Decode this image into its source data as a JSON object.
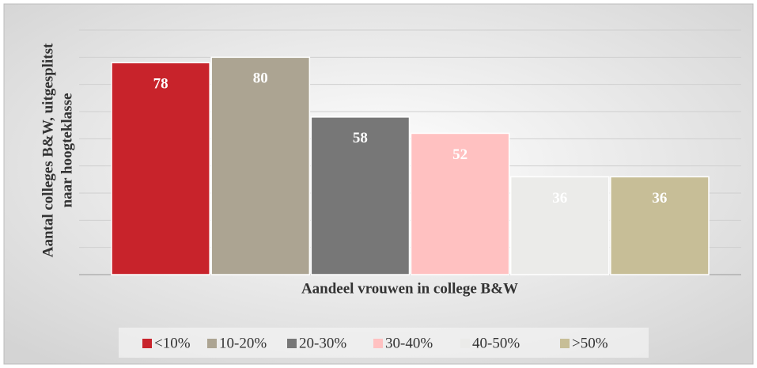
{
  "chart_data": {
    "type": "bar",
    "ylabel": [
      "Aantal colleges B&W, uitgesplitst",
      "naar hoogteklasse"
    ],
    "xlabel": "Aandeel vrouwen in college B&W",
    "categories": [
      null
    ],
    "series": [
      {
        "name": "<10%",
        "color": "#c8232b",
        "values": [
          78
        ]
      },
      {
        "name": "10-20%",
        "color": "#aca492",
        "values": [
          80
        ]
      },
      {
        "name": "20-30%",
        "color": "#777777",
        "values": [
          58
        ]
      },
      {
        "name": "30-40%",
        "color": "#ffc1c1",
        "values": [
          52
        ]
      },
      {
        "name": "40-50%",
        "color": "#ebebe9",
        "values": [
          36
        ]
      },
      {
        "name": ">50%",
        "color": "#c7be97",
        "values": [
          36
        ]
      }
    ],
    "ylim": [
      0,
      90
    ],
    "yticks": [
      0,
      10,
      20,
      30,
      40,
      50,
      60,
      70,
      80,
      90
    ],
    "grid": true,
    "legend": "bottom"
  }
}
